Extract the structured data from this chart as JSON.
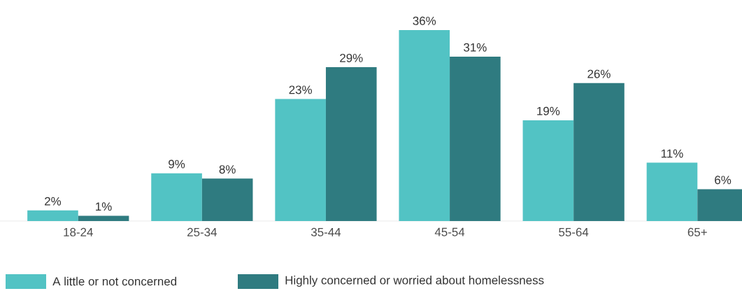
{
  "chart_data": {
    "type": "bar",
    "categories": [
      "18-24",
      "25-34",
      "35-44",
      "45-54",
      "55-64",
      "65+"
    ],
    "series": [
      {
        "name": "A little or not concerned",
        "color": "#52c3c4",
        "values": [
          2,
          9,
          23,
          36,
          19,
          11
        ],
        "value_labels": [
          "2%",
          "9%",
          "23%",
          "36%",
          "19%",
          "11%"
        ]
      },
      {
        "name": "Highly concerned or worried about homelessness",
        "color": "#2f7b80",
        "values": [
          1,
          8,
          29,
          31,
          26,
          6
        ],
        "value_labels": [
          "1%",
          "8%",
          "29%",
          "31%",
          "26%",
          "6%"
        ]
      }
    ],
    "legend": "bottom left",
    "grid": false
  }
}
